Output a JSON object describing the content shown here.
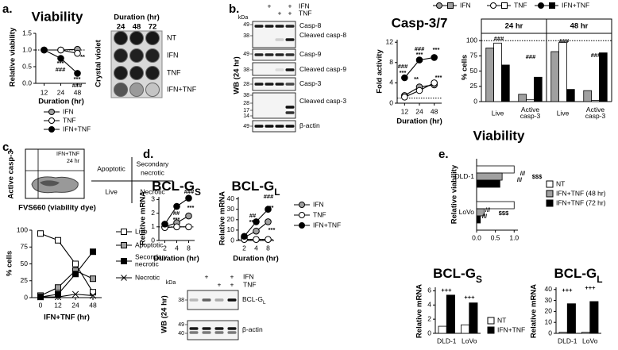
{
  "panel_labels": [
    "a.",
    "b.",
    "c.",
    "d.",
    "e."
  ],
  "crystal_violet": {
    "title": "Duration (hr)",
    "columns": [
      "24",
      "48",
      "72"
    ],
    "rows": [
      "NT",
      "IFN",
      "TNF",
      "IFN+TNF"
    ],
    "side_label": "Crystal violet"
  },
  "western_blot_b": {
    "kda_label": "kDa",
    "side_label": "WB (24 hr)",
    "treatments": [
      {
        "name": "IFN",
        "lanes": [
          null,
          "+",
          null,
          "+"
        ]
      },
      {
        "name": "TNF",
        "lanes": [
          null,
          null,
          "+",
          "+"
        ]
      }
    ],
    "markers": [
      "49",
      "38",
      "49",
      "38",
      "28",
      "38",
      "28",
      "17",
      "14",
      "49"
    ],
    "bands": [
      {
        "name": "Casp-8"
      },
      {
        "name": "Cleaved casp-8"
      },
      {
        "name": "Casp-9"
      },
      {
        "name": "Cleaved casp-9"
      },
      {
        "name": "Casp-3"
      },
      {
        "name": "Cleaved casp-3"
      },
      {
        "name": "β-actin"
      }
    ]
  },
  "flow_plot": {
    "y_label": "Active casp-3",
    "x_label": "FVS660 (viability dye)",
    "condition": "IFN+TNF",
    "time": "24 hr",
    "quadrants": [
      "Apoptotic",
      "Secondary necrotic",
      "Live",
      "Necrotic"
    ]
  },
  "western_blot_d": {
    "kda_label": "kDa",
    "side_label": "WB (24 hr)",
    "treatments": [
      {
        "name": "IFN",
        "lanes": [
          null,
          "+",
          null,
          "+"
        ]
      },
      {
        "name": "TNF",
        "lanes": [
          null,
          null,
          "+",
          "+"
        ]
      }
    ],
    "markers": [
      "38",
      "49",
      "40"
    ],
    "bands": [
      {
        "name": "BCL-G",
        "sub": "L"
      },
      {
        "name": "β-actin"
      }
    ]
  },
  "chart_data": [
    {
      "type": "line",
      "title": "Viability",
      "x_label": "Duration (hr)",
      "y_label": "Relative viability",
      "categories": [
        "12",
        "24",
        "48"
      ],
      "ylim": [
        0,
        1.5
      ],
      "yticks": [
        {
          "value": 0,
          "label": "0.0"
        },
        {
          "value": 0.5,
          "label": "0.5"
        },
        {
          "value": 1,
          "label": "1.0"
        },
        {
          "value": 1.5,
          "label": "1.5"
        }
      ],
      "refline": 1,
      "series": [
        {
          "name": "IFN",
          "color": "#a0a0a0",
          "marker": "circle",
          "values": [
            1.0,
            1.0,
            1.02
          ]
        },
        {
          "name": "TNF",
          "color": "#ffffff",
          "marker": "circle",
          "values": [
            1.0,
            1.0,
            0.9
          ]
        },
        {
          "name": "IFN+TNF",
          "color": "#000000",
          "marker": "circle",
          "values": [
            1.0,
            0.75,
            0.3
          ]
        }
      ],
      "annotations": [
        "***",
        "###",
        "**",
        "***",
        "###"
      ]
    },
    {
      "type": "line",
      "title": "Casp-3/7",
      "x_label": "Duration (hr)",
      "y_label": "Fold activity",
      "categories": [
        "12",
        "24",
        "48"
      ],
      "ylim": [
        0,
        12.5
      ],
      "yticks": [
        0,
        4,
        8,
        12
      ],
      "refline": 1,
      "series": [
        {
          "color": "#a0a0a0",
          "marker": "circle",
          "values": [
            1.5,
            3.2,
            3.6
          ]
        },
        {
          "color": "#ffffff",
          "marker": "circle",
          "values": [
            1.2,
            2.5,
            4.0
          ]
        },
        {
          "color": "#000000",
          "marker": "circle",
          "values": [
            5.0,
            8.5,
            9.0
          ]
        }
      ],
      "annotations": [
        "###",
        "***",
        "###",
        "***",
        "***",
        "**",
        "*",
        "***"
      ]
    },
    {
      "type": "bar",
      "y_label": "% cells",
      "facets": [
        "24 hr",
        "48 hr"
      ],
      "categories": [
        "Live",
        "Active casp-3",
        "Live",
        "Active casp-3"
      ],
      "ylim": [
        0,
        112
      ],
      "yticks": [
        0,
        25,
        50,
        75,
        100
      ],
      "refline": 100,
      "series": [
        {
          "name": "IFN",
          "color": "#a0a0a0",
          "values": [
            88,
            12,
            82,
            18
          ]
        },
        {
          "name": "TNF",
          "color": "#ffffff",
          "values": [
            96,
            3,
            97,
            2
          ]
        },
        {
          "name": "IFN+TNF",
          "color": "#000000",
          "values": [
            60,
            40,
            20,
            80
          ]
        }
      ],
      "annotations": [
        "###",
        "###",
        "###",
        "###"
      ]
    },
    {
      "type": "line",
      "x_label": "IFN+TNF (hr)",
      "y_label": "% cells",
      "categories": [
        "0",
        "12",
        "24",
        "48"
      ],
      "ylim": [
        0,
        100
      ],
      "yticks": [
        0,
        25,
        50,
        75,
        100
      ],
      "series": [
        {
          "name": "Live",
          "color": "#ffffff",
          "marker": "square",
          "values": [
            95,
            85,
            50,
            8
          ]
        },
        {
          "name": "Apoptotic",
          "color": "#a0a0a0",
          "marker": "square",
          "values": [
            3,
            15,
            40,
            28
          ]
        },
        {
          "name": "Secondary necrotic",
          "color": "#000000",
          "marker": "square",
          "values": [
            1,
            5,
            35,
            68
          ]
        },
        {
          "name": "Necrotic",
          "color": "#000000",
          "marker": "x",
          "values": [
            1,
            1,
            5,
            3
          ]
        }
      ]
    },
    {
      "type": "line",
      "title": "BCL-G",
      "title_sub": "S",
      "x_label": "Duration (hr)",
      "y_label": "Relative mRNA",
      "categories": [
        "2",
        "4",
        "8"
      ],
      "ylim": [
        0,
        3.2
      ],
      "yticks": [
        0,
        1,
        2,
        3
      ],
      "refline": 1,
      "series": [
        {
          "color": "#a0a0a0",
          "marker": "circle",
          "values": [
            1.0,
            1.3,
            1.8
          ]
        },
        {
          "color": "#ffffff",
          "marker": "circle",
          "values": [
            0.95,
            1.0,
            1.0
          ]
        },
        {
          "color": "#000000",
          "marker": "circle",
          "values": [
            1.2,
            2.5,
            3.1
          ]
        }
      ],
      "annotations": [
        "##",
        "***",
        "###",
        "***"
      ]
    },
    {
      "type": "line",
      "title": "BCL-G",
      "title_sub": "L",
      "x_label": "Duration (hr)",
      "y_label": "Relative mRNA",
      "categories": [
        "2",
        "4",
        "8"
      ],
      "ylim": [
        0,
        42
      ],
      "yticks": [
        0,
        10,
        20,
        30,
        40
      ],
      "refline": 1,
      "series": [
        {
          "name": "IFN",
          "color": "#a0a0a0",
          "marker": "circle",
          "values": [
            3,
            9,
            18
          ]
        },
        {
          "name": "TNF",
          "color": "#ffffff",
          "marker": "circle",
          "values": [
            1,
            1,
            1
          ]
        },
        {
          "name": "IFN+TNF",
          "color": "#000000",
          "marker": "circle",
          "values": [
            4,
            18,
            30
          ]
        }
      ],
      "annotations": [
        "##",
        "***",
        "###",
        "***",
        "***"
      ]
    },
    {
      "type": "hbar",
      "title": "Viability",
      "y_label": "Relative viability",
      "categories": [
        "DLD-1",
        "LoVo"
      ],
      "xlim": [
        0,
        1.1
      ],
      "xticks": [
        {
          "value": 0,
          "label": "0.0"
        },
        {
          "value": 0.5,
          "label": "0.5"
        },
        {
          "value": 1,
          "label": "1.0"
        }
      ],
      "series": [
        {
          "name": "NT",
          "color": "#ffffff",
          "values": [
            1.0,
            1.0
          ]
        },
        {
          "name": "IFN+TNF (48 hr)",
          "color": "#a0a0a0",
          "values": [
            0.68,
            0.2
          ]
        },
        {
          "name": "IFN+TNF (72 hr)",
          "color": "#000000",
          "values": [
            0.62,
            0.1
          ]
        }
      ],
      "annotations": [
        "///",
        "///",
        "$$$",
        "///",
        "///",
        "$$$"
      ]
    },
    {
      "type": "bar",
      "title": "BCL-G",
      "title_sub": "S",
      "y_label": "Relative mRNA",
      "categories": [
        "DLD-1",
        "LoVo"
      ],
      "ylim": [
        0,
        6.5
      ],
      "yticks": [
        0,
        2,
        4,
        6
      ],
      "series": [
        {
          "color": "#ffffff",
          "values": [
            1.0,
            1.2
          ]
        },
        {
          "color": "#000000",
          "values": [
            5.4,
            4.3
          ]
        }
      ],
      "annotations": [
        "+++",
        "+++"
      ]
    },
    {
      "type": "bar",
      "title": "BCL-G",
      "title_sub": "L",
      "y_label": "Relative mRNA",
      "categories": [
        "DLD-1",
        "LoVo"
      ],
      "ylim": [
        0,
        42
      ],
      "yticks": [
        0,
        10,
        20,
        30,
        40
      ],
      "series": [
        {
          "name": "NT",
          "color": "#ffffff",
          "values": [
            1,
            1
          ]
        },
        {
          "name": "IFN+TNF",
          "color": "#000000",
          "values": [
            27,
            29
          ]
        }
      ],
      "annotations": [
        "+++",
        "+++"
      ]
    }
  ]
}
